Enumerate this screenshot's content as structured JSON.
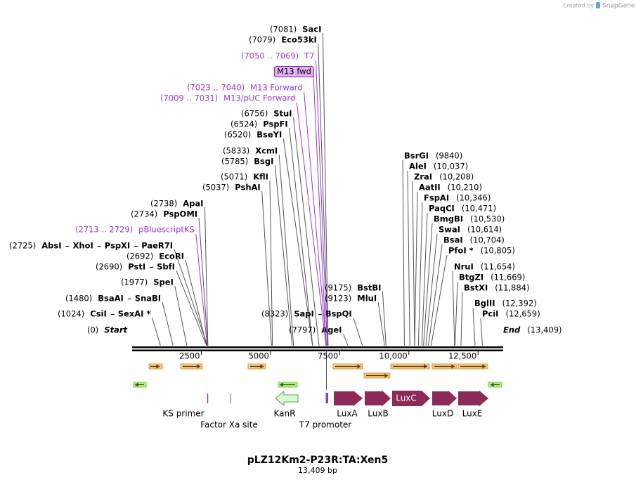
{
  "credit": {
    "prefix": "Created by",
    "brand": "SnapGene"
  },
  "title": "pLZ12Km2-P23R:TA:Xen5",
  "subtitle": "13,409 bp",
  "sequence": {
    "length": 13409,
    "ticks": [
      2500,
      5000,
      7500,
      {
        "value": 10000,
        "label": "10,000"
      },
      {
        "value": 12500,
        "label": "12,500"
      }
    ]
  },
  "left_sites": [
    {
      "site": {
        "value": 7081,
        "label": "(7081)"
      },
      "names": [
        "SacI"
      ]
    },
    {
      "site": {
        "value": 7079,
        "label": "(7079)"
      },
      "names": [
        "Eco53kI"
      ]
    },
    {
      "site": {
        "value": 6756,
        "label": "(6756)"
      },
      "names": [
        "StuI"
      ]
    },
    {
      "site": {
        "value": 6524,
        "label": "(6524)"
      },
      "names": [
        "PspFI"
      ]
    },
    {
      "site": {
        "value": 6520,
        "label": "(6520)"
      },
      "names": [
        "BseYI"
      ]
    },
    {
      "site": {
        "value": 5833,
        "label": "(5833)"
      },
      "names": [
        "XcmI"
      ]
    },
    {
      "site": {
        "value": 5785,
        "label": "(5785)"
      },
      "names": [
        "BsgI"
      ]
    },
    {
      "site": {
        "value": 5071,
        "label": "(5071)"
      },
      "names": [
        "KflI"
      ]
    },
    {
      "site": {
        "value": 5037,
        "label": "(5037)"
      },
      "names": [
        "PshAI"
      ]
    },
    {
      "site": {
        "value": 2738,
        "label": "(2738)"
      },
      "names": [
        "ApaI"
      ]
    },
    {
      "site": {
        "value": 2734,
        "label": "(2734)"
      },
      "names": [
        "PspOMI"
      ]
    },
    {
      "site": {
        "value": 2725,
        "label": "(2725)"
      },
      "names": [
        "AbsI",
        "XhoI",
        "PspXI",
        "PaeR7I"
      ]
    },
    {
      "site": {
        "value": 2692,
        "label": "(2692)"
      },
      "names": [
        "EcoRI"
      ]
    },
    {
      "site": {
        "value": 2690,
        "label": "(2690)"
      },
      "names": [
        "PstI",
        "SbfI"
      ]
    },
    {
      "site": {
        "value": 1977,
        "label": "(1977)"
      },
      "names": [
        "SpeI"
      ]
    },
    {
      "site": {
        "value": 1480,
        "label": "(1480)"
      },
      "names": [
        "BsaAI",
        "SnaBI"
      ]
    },
    {
      "site": {
        "value": 1024,
        "label": "(1024)"
      },
      "names": [
        "CsiI",
        "SexAI *"
      ]
    },
    {
      "site": {
        "value": 0,
        "label": "(0)"
      },
      "names": [
        "Start"
      ]
    },
    {
      "site": {
        "value": 8323,
        "label": "(8323)"
      },
      "names": [
        "SapI",
        "BspQI"
      ]
    },
    {
      "site": {
        "value": 7797,
        "label": "(7797)"
      },
      "names": [
        "AgeI"
      ]
    },
    {
      "site": {
        "value": 9175,
        "label": "(9175)"
      },
      "names": [
        "BstBI"
      ]
    },
    {
      "site": {
        "value": 9123,
        "label": "(9123)"
      },
      "names": [
        "MluI"
      ]
    }
  ],
  "right_sites": [
    {
      "names": [
        "BsrGI"
      ],
      "site": {
        "value": 9840,
        "label": "(9840)"
      }
    },
    {
      "names": [
        "AleI"
      ],
      "site": {
        "value": 10037,
        "label": "(10,037)"
      }
    },
    {
      "names": [
        "ZraI"
      ],
      "site": {
        "value": 10208,
        "label": "(10,208)"
      }
    },
    {
      "names": [
        "AatII"
      ],
      "site": {
        "value": 10210,
        "label": "(10,210)"
      }
    },
    {
      "names": [
        "FspAI"
      ],
      "site": {
        "value": 10346,
        "label": "(10,346)"
      }
    },
    {
      "names": [
        "PaqCI"
      ],
      "site": {
        "value": 10471,
        "label": "(10,471)"
      }
    },
    {
      "names": [
        "BmgBI"
      ],
      "site": {
        "value": 10530,
        "label": "(10,530)"
      }
    },
    {
      "names": [
        "SwaI"
      ],
      "site": {
        "value": 10614,
        "label": "(10,614)"
      }
    },
    {
      "names": [
        "BsaI"
      ],
      "site": {
        "value": 10704,
        "label": "(10,704)"
      }
    },
    {
      "names": [
        "PfoI *"
      ],
      "site": {
        "value": 10805,
        "label": "(10,805)"
      }
    },
    {
      "names": [
        "NruI"
      ],
      "site": {
        "value": 11654,
        "label": "(11,654)"
      }
    },
    {
      "names": [
        "BtgZI"
      ],
      "site": {
        "value": 11669,
        "label": "(11,669)"
      }
    },
    {
      "names": [
        "BstXI"
      ],
      "site": {
        "value": 11884,
        "label": "(11,884)"
      }
    },
    {
      "names": [
        "BglII"
      ],
      "site": {
        "value": 12392,
        "label": "(12,392)"
      }
    },
    {
      "names": [
        "PciI"
      ],
      "site": {
        "value": 12659,
        "label": "(12,659)"
      }
    },
    {
      "names": [
        "End"
      ],
      "site": {
        "value": 13409,
        "label": "(13,409)"
      }
    }
  ],
  "primers": [
    {
      "range": {
        "start": 7050,
        "end": 7069,
        "label": "(7050 .. 7069)"
      },
      "name": "T7"
    },
    {
      "range": {
        "start": 7023,
        "end": 7040,
        "label": "(7023 .. 7040)"
      },
      "name": "M13 Forward"
    },
    {
      "range": {
        "start": 7009,
        "end": 7031,
        "label": "(7009 .. 7031)"
      },
      "name": "M13/pUC Forward"
    },
    {
      "range": {
        "start": 2713,
        "end": 2729,
        "label": "(2713 .. 2729)"
      },
      "name": "pBluescriptKS"
    }
  ],
  "primer_tag": "M13 fwd",
  "features": [
    {
      "name": "KS primer"
    },
    {
      "name": "Factor Xa site"
    },
    {
      "name": "KanR"
    },
    {
      "name": "T7 promoter"
    },
    {
      "name": "LuxA"
    },
    {
      "name": "LuxB"
    },
    {
      "name": "LuxC"
    },
    {
      "name": "LuxD"
    },
    {
      "name": "LuxE"
    }
  ]
}
